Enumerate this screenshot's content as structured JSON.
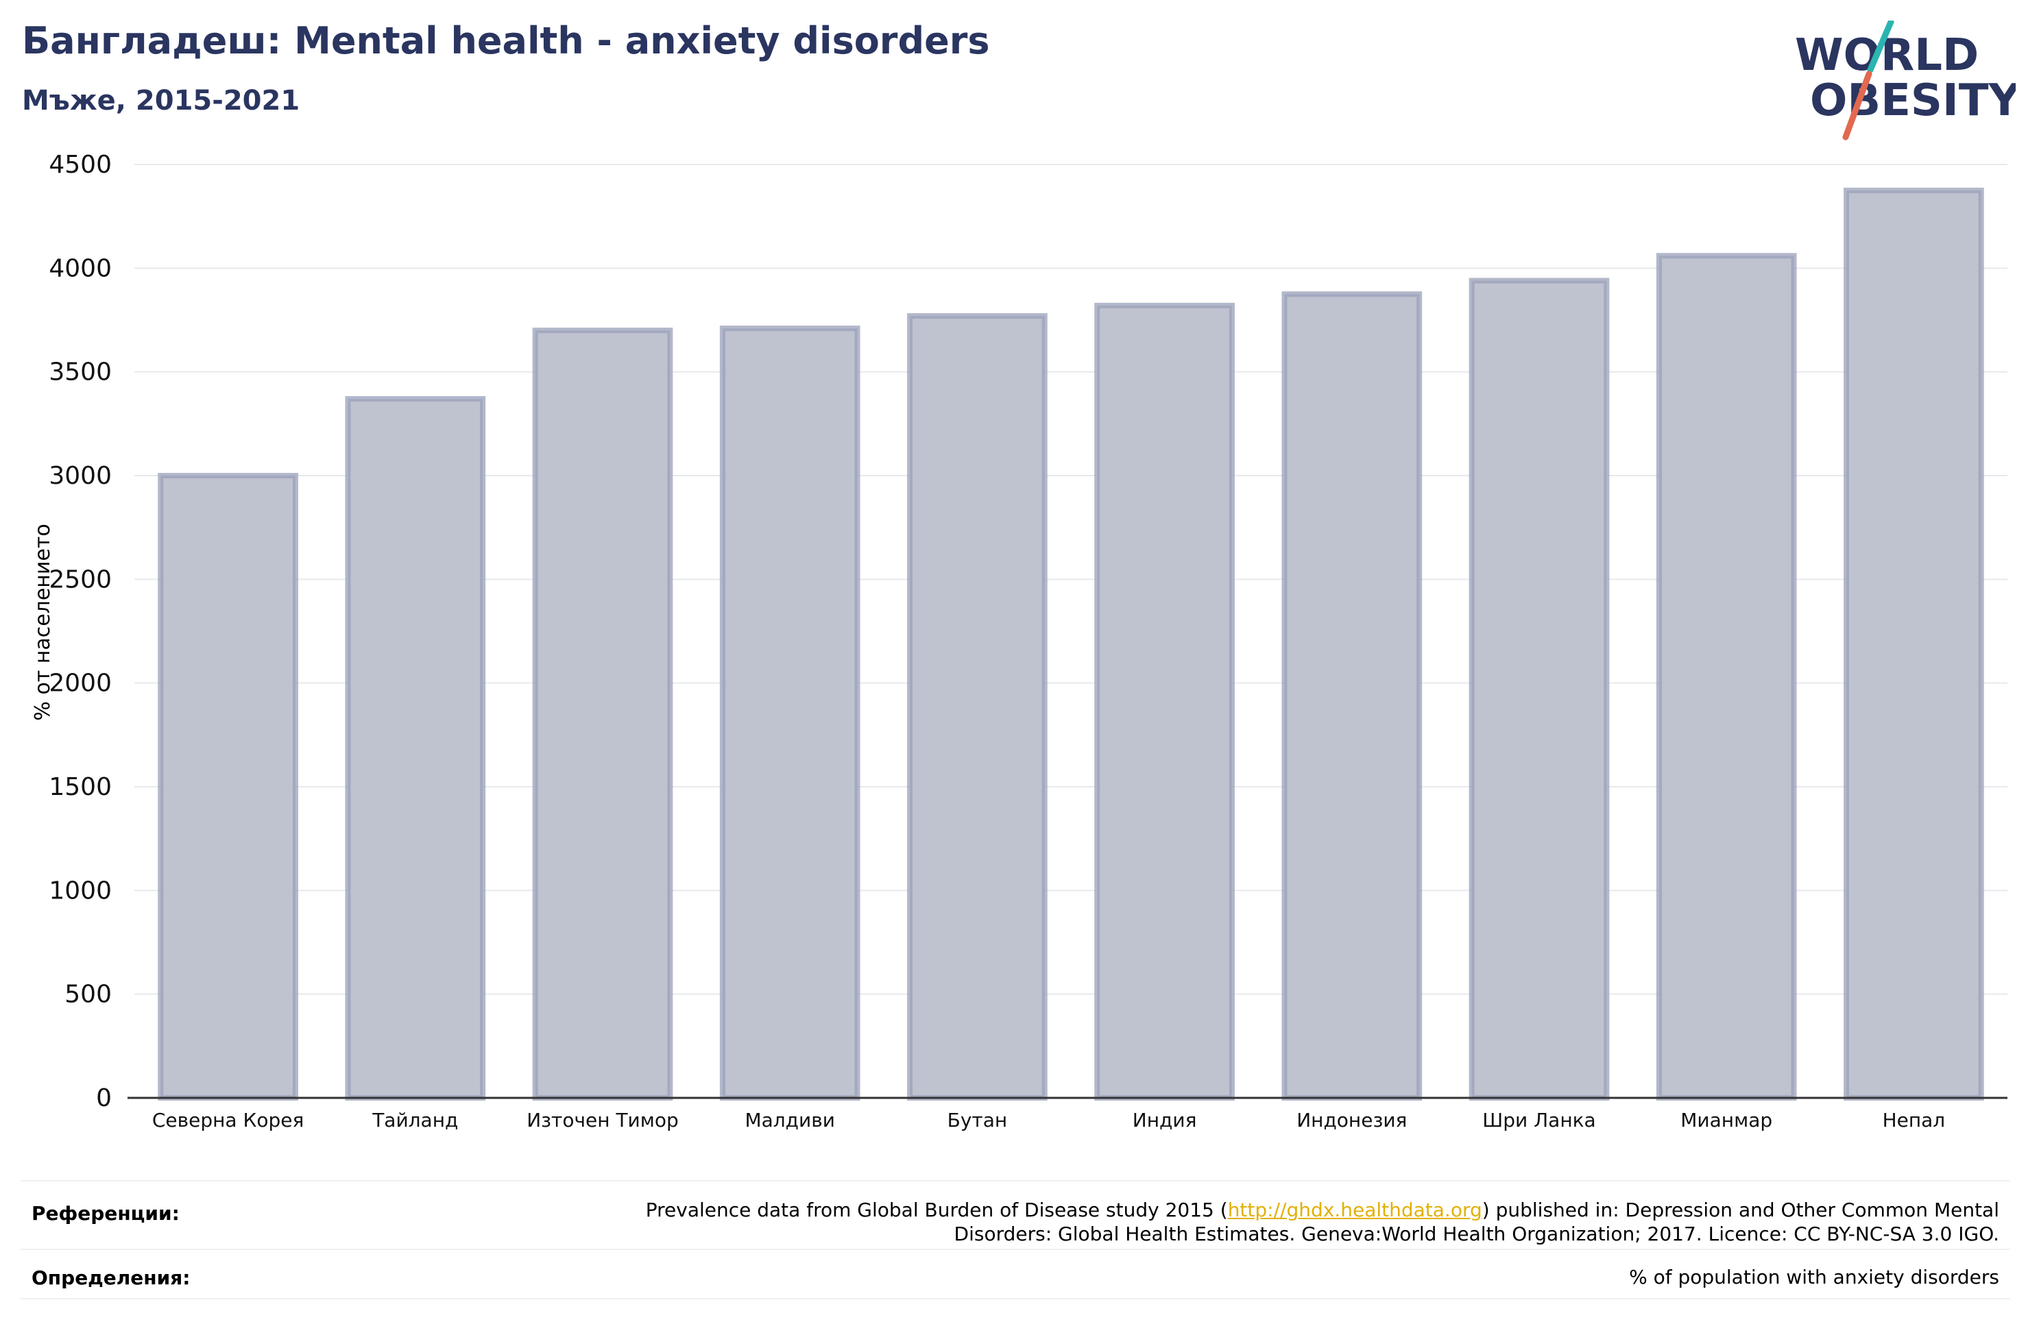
{
  "header": {
    "title": "Бангладеш: Mental health - anxiety disorders",
    "subtitle": "Мъже, 2015-2021"
  },
  "logo": {
    "line1": "WORLD",
    "line2": "OBESITY",
    "text_color": "#2a3560",
    "slash_colors": [
      "#2bb5b0",
      "#e2694f"
    ]
  },
  "colors": {
    "bar_fill": "#bfc2cf",
    "bar_stroke": "#9aa0ba",
    "grid": "#e8e9ee",
    "axis": "#333333"
  },
  "chart_data": {
    "type": "bar",
    "categories": [
      "Северна Корея",
      "Тайланд",
      "Източен Тимор",
      "Малдиви",
      "Бутан",
      "Индия",
      "Индонезия",
      "Шри Ланка",
      "Мианмар",
      "Непал"
    ],
    "values": [
      3000,
      3370,
      3700,
      3710,
      3770,
      3820,
      3875,
      3940,
      4060,
      4375
    ],
    "ylabel": "% от населението",
    "ylim": [
      0,
      4500
    ],
    "yticks": [
      0,
      500,
      1000,
      1500,
      2000,
      2500,
      3000,
      3500,
      4000,
      4500
    ],
    "grid": true
  },
  "footer": {
    "references_label": "Референции:",
    "references_text_before": "Prevalence data from Global Burden of Disease study 2015 (",
    "references_link": "http://ghdx.healthdata.org",
    "references_text_after": ") published in: Depression and Other Common Mental",
    "references_line2": "Disorders: Global Health Estimates. Geneva:World Health Organization; 2017. Licence: CC BY-NC-SA 3.0 IGO.",
    "definitions_label": "Определения:",
    "definitions_text": "% of population with anxiety disorders"
  }
}
